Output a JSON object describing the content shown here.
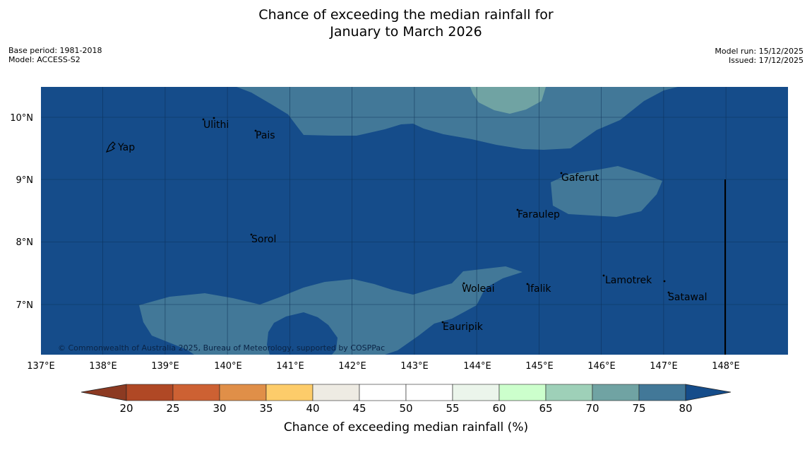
{
  "header": {
    "title_line1": "Chance of exceeding the median rainfall for",
    "title_line2": "January to March 2026",
    "base_period": "Base period: 1981-2018",
    "model": "Model: ACCESS-S2",
    "model_run": "Model run: 15/12/2025",
    "issued": "Issued: 17/12/2025"
  },
  "map": {
    "copyright": "© Commonwealth of Australia 2025, Bureau of Meteorology, supported by COSPPac",
    "lon_ticks": [
      "137°E",
      "138°E",
      "139°E",
      "140°E",
      "141°E",
      "142°E",
      "143°E",
      "144°E",
      "145°E",
      "146°E",
      "147°E",
      "148°E"
    ],
    "lat_ticks": [
      "10°N",
      "9°N",
      "8°N",
      "7°N"
    ],
    "places": [
      {
        "name": "Yap"
      },
      {
        "name": "Ulithi"
      },
      {
        "name": "Pais"
      },
      {
        "name": "Gaferut"
      },
      {
        "name": "Faraulep"
      },
      {
        "name": "Sorol"
      },
      {
        "name": "Woleai"
      },
      {
        "name": "Ifalik"
      },
      {
        "name": "Lamotrek"
      },
      {
        "name": "Satawal"
      },
      {
        "name": "Eauripik"
      }
    ],
    "colors": {
      "class_80_plus": "#154c8a",
      "class_75_80": "#427898",
      "class_70_75": "#70a3a3"
    }
  },
  "colorbar": {
    "label": "Chance of exceeding median rainfall (%)",
    "ticks": [
      "20",
      "25",
      "30",
      "35",
      "40",
      "45",
      "50",
      "55",
      "60",
      "65",
      "70",
      "75",
      "80"
    ],
    "colors": [
      "#b04825",
      "#cd6133",
      "#e08f48",
      "#fdcc6a",
      "#eeebe3",
      "#ffffff",
      "#ffffff",
      "#ebf5eb",
      "#ccffcc",
      "#9ed0b8",
      "#70a3a3",
      "#427898"
    ],
    "low_extend_color": "#8c3a22",
    "high_extend_color": "#154c8a"
  }
}
